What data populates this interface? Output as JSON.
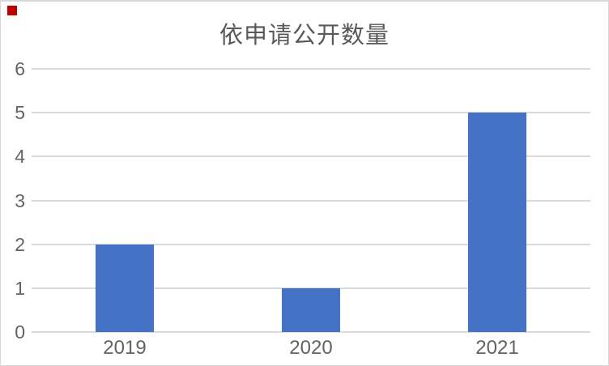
{
  "chart_data": {
    "type": "bar",
    "title": "依申请公开数量",
    "categories": [
      "2019",
      "2020",
      "2021"
    ],
    "values": [
      2,
      1,
      5
    ],
    "y_ticks": [
      0,
      1,
      2,
      3,
      4,
      5,
      6
    ],
    "ylim": [
      0,
      6
    ],
    "xlabel": "",
    "ylabel": "",
    "grid": true,
    "legend": false,
    "bar_color": "#4472c4",
    "grid_color": "#dadada",
    "title_color": "#595959",
    "tick_label_color": "#636363",
    "background_color": "#ffffff",
    "border_color": "#d8d8d8",
    "marker_color": "#c00000"
  }
}
